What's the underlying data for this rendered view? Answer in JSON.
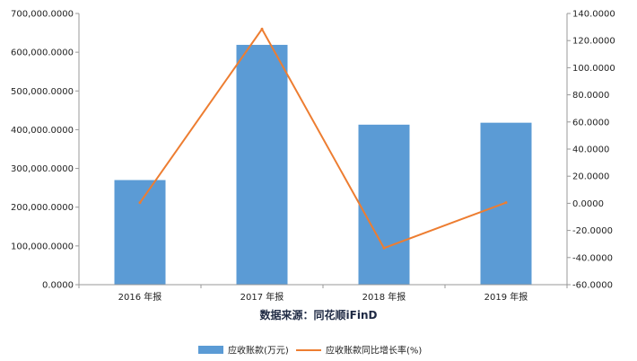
{
  "chart_data": {
    "type": "bar",
    "categories": [
      "2016 年报",
      "2017 年报",
      "2018 年报",
      "2019 年报"
    ],
    "series": [
      {
        "name": "应收账款(万元)",
        "type": "bar",
        "axis": "left",
        "color": "#5b9bd5",
        "values": [
          270000,
          619000,
          413000,
          418000
        ]
      },
      {
        "name": "应收账款同比增长率(%)",
        "type": "line",
        "axis": "right",
        "color": "#ed7d31",
        "values": [
          0.5,
          128.5,
          -33.0,
          0.5
        ]
      }
    ],
    "y_left": {
      "min": 0,
      "max": 700000,
      "ticks": [
        0,
        100000,
        200000,
        300000,
        400000,
        500000,
        600000,
        700000
      ],
      "tick_labels": [
        "0.0000",
        "100,000.0000",
        "200,000.0000",
        "300,000.0000",
        "400,000.0000",
        "500,000.0000",
        "600,000.0000",
        "700,000.0000"
      ]
    },
    "y_right": {
      "min": -60,
      "max": 140,
      "ticks": [
        -60,
        -40,
        -20,
        0,
        20,
        40,
        60,
        80,
        100,
        120,
        140
      ],
      "tick_labels": [
        "-60.0000",
        "-40.0000",
        "-20.0000",
        "0.0000",
        "20.0000",
        "40.0000",
        "60.0000",
        "80.0000",
        "100.0000",
        "120.0000",
        "140.0000"
      ]
    },
    "source": "数据来源：同花顺iFinD",
    "legend_position": "bottom",
    "grid": false
  }
}
